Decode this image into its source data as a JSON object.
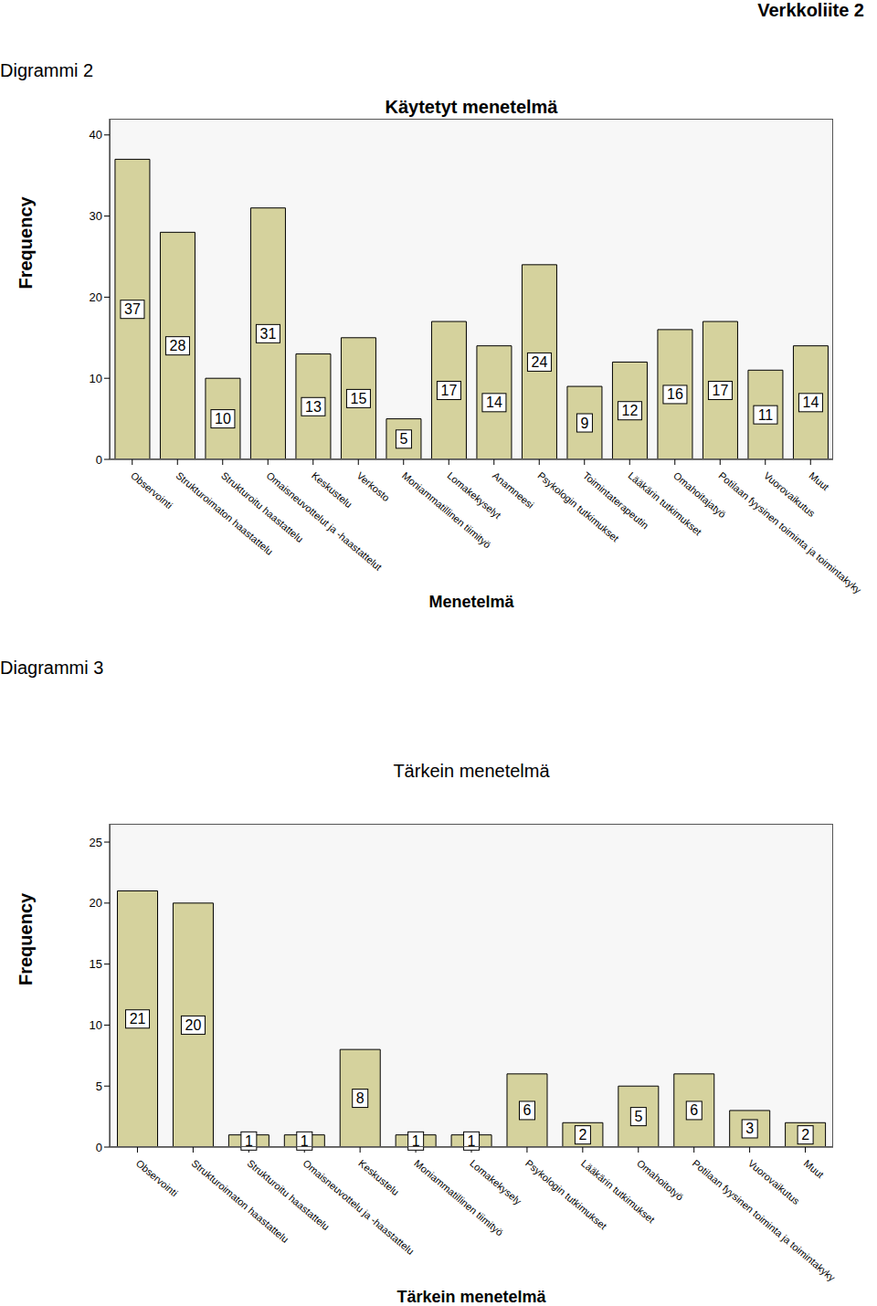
{
  "header": "Verkkoliite 2",
  "chart_data": [
    {
      "caption": "Digrammi 2",
      "type": "bar",
      "title": "Käytetyt menetelmä",
      "x_label": "Menetelmä",
      "y_label": "Frequency",
      "categories": [
        "Observointi",
        "Strukturoimaton haastattelu",
        "Strukturoitu haastattelu",
        "Omaisneuvottelut ja -haastattelut",
        "Keskustelu",
        "Verkosto",
        "Moniammatillinen tiimityö",
        "Lomakekyselyt",
        "Anamneesi",
        "Psykologin tutkimukset",
        "Toimintaterapeutin",
        "Lääkärin tutkimukset",
        "Omahoitajatyö",
        "Potilaan fyysinen toiminta ja toimintakyky",
        "Vuorovaikutus",
        "Muut"
      ],
      "values": [
        37,
        28,
        10,
        31,
        13,
        15,
        5,
        17,
        14,
        24,
        9,
        12,
        16,
        17,
        11,
        14
      ],
      "color": "#d5d29d",
      "ylim": [
        0,
        42
      ],
      "yticks": [
        0,
        10,
        20,
        30,
        40
      ],
      "grid": false,
      "data_labels": true
    },
    {
      "caption": "Diagrammi 3",
      "type": "bar",
      "title": "Tärkein menetelmä",
      "x_label": "Tärkein menetelmä",
      "y_label": "Frequency",
      "categories": [
        "Observointi",
        "Strukturoimaton haastattelu",
        "Strukturoitu haastattelu",
        "Omaisneuvottelu ja -haastattelu",
        "Keskustelu",
        "Moniammatillinen tiimityö",
        "Lomakekysely",
        "Psykologin tutkimukset",
        "Lääkärin tutkimukset",
        "Omahoitotyö",
        "Potilaan fyysinen toiminta ja toimintakyky",
        "Vuorovaikutus",
        "Muut"
      ],
      "values": [
        21,
        20,
        1,
        1,
        8,
        1,
        1,
        6,
        2,
        5,
        6,
        3,
        2
      ],
      "color": "#d5d29d",
      "ylim": [
        0,
        26.5
      ],
      "yticks": [
        0,
        5,
        10,
        15,
        20,
        25
      ],
      "grid": false,
      "data_labels": true
    }
  ]
}
